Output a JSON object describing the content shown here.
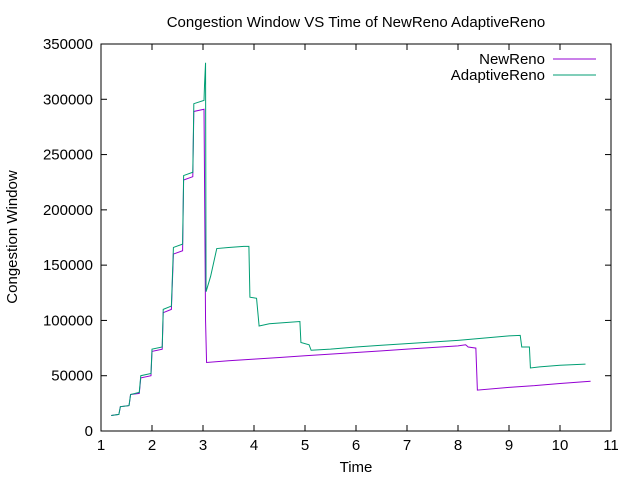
{
  "chart_data": {
    "type": "line",
    "title": "Congestion Window VS Time of NewReno  AdaptiveReno",
    "xlabel": "Time",
    "ylabel": "Congestion Window",
    "xlim": [
      1,
      11
    ],
    "ylim": [
      0,
      350000
    ],
    "xticks": [
      1,
      2,
      3,
      4,
      5,
      6,
      7,
      8,
      9,
      10,
      11
    ],
    "yticks": [
      0,
      50000,
      100000,
      150000,
      200000,
      250000,
      300000,
      350000
    ],
    "legend_position": "top-right",
    "grid": false,
    "series": [
      {
        "name": "NewReno",
        "color": "#9400d3",
        "points": [
          [
            1.2,
            14000
          ],
          [
            1.35,
            15000
          ],
          [
            1.38,
            22000
          ],
          [
            1.55,
            23000
          ],
          [
            1.58,
            33000
          ],
          [
            1.75,
            34000
          ],
          [
            1.78,
            48000
          ],
          [
            1.98,
            50000
          ],
          [
            2.0,
            72000
          ],
          [
            2.2,
            74000
          ],
          [
            2.22,
            107000
          ],
          [
            2.38,
            110000
          ],
          [
            2.42,
            160000
          ],
          [
            2.6,
            163000
          ],
          [
            2.62,
            227000
          ],
          [
            2.8,
            230000
          ],
          [
            2.82,
            289000
          ],
          [
            3.02,
            291000
          ],
          [
            3.05,
            100000
          ],
          [
            3.07,
            62000
          ],
          [
            3.5,
            63500
          ],
          [
            4.0,
            65000
          ],
          [
            4.5,
            66500
          ],
          [
            5.0,
            68000
          ],
          [
            5.5,
            69500
          ],
          [
            6.0,
            71000
          ],
          [
            6.5,
            72500
          ],
          [
            7.0,
            74000
          ],
          [
            7.5,
            75500
          ],
          [
            8.0,
            77000
          ],
          [
            8.15,
            78000
          ],
          [
            8.2,
            76000
          ],
          [
            8.35,
            75000
          ],
          [
            8.38,
            37000
          ],
          [
            9.0,
            39500
          ],
          [
            9.5,
            41000
          ],
          [
            10.0,
            43000
          ],
          [
            10.6,
            45000
          ]
        ]
      },
      {
        "name": "AdaptiveReno",
        "color": "#009e73",
        "points": [
          [
            1.2,
            14000
          ],
          [
            1.35,
            15000
          ],
          [
            1.38,
            22000
          ],
          [
            1.55,
            23000
          ],
          [
            1.58,
            33000
          ],
          [
            1.75,
            35000
          ],
          [
            1.78,
            50000
          ],
          [
            1.98,
            52000
          ],
          [
            2.0,
            74000
          ],
          [
            2.2,
            76000
          ],
          [
            2.22,
            110000
          ],
          [
            2.38,
            113000
          ],
          [
            2.42,
            166000
          ],
          [
            2.6,
            169000
          ],
          [
            2.62,
            231000
          ],
          [
            2.8,
            234000
          ],
          [
            2.82,
            296000
          ],
          [
            3.02,
            299000
          ],
          [
            3.03,
            313000
          ],
          [
            3.05,
            333000
          ],
          [
            3.06,
            126000
          ],
          [
            3.15,
            140000
          ],
          [
            3.27,
            165000
          ],
          [
            3.5,
            166000
          ],
          [
            3.8,
            167000
          ],
          [
            3.9,
            167000
          ],
          [
            3.92,
            121000
          ],
          [
            4.05,
            120000
          ],
          [
            4.1,
            95000
          ],
          [
            4.3,
            97000
          ],
          [
            4.6,
            98000
          ],
          [
            4.9,
            99000
          ],
          [
            4.92,
            80000
          ],
          [
            5.08,
            78000
          ],
          [
            5.12,
            73000
          ],
          [
            5.5,
            74000
          ],
          [
            6.0,
            76000
          ],
          [
            6.5,
            77500
          ],
          [
            7.0,
            79000
          ],
          [
            7.5,
            80500
          ],
          [
            8.0,
            82000
          ],
          [
            8.5,
            84000
          ],
          [
            9.0,
            86000
          ],
          [
            9.22,
            86500
          ],
          [
            9.25,
            76000
          ],
          [
            9.4,
            76000
          ],
          [
            9.42,
            57000
          ],
          [
            9.6,
            58000
          ],
          [
            10.0,
            59500
          ],
          [
            10.5,
            60500
          ]
        ]
      }
    ]
  }
}
